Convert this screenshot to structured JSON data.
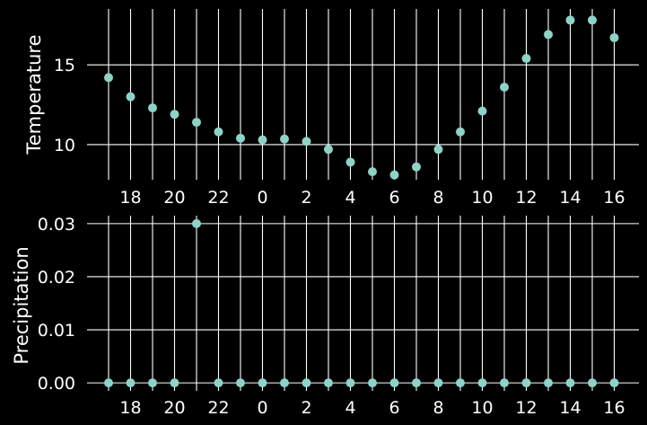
{
  "colors": {
    "background": "#000000",
    "grid": "#ffffff",
    "marker": "#8dd3c7",
    "text": "#ffffff"
  },
  "chart_data": [
    {
      "type": "scatter",
      "ylabel": "Temperature",
      "xlabel": "",
      "grid": true,
      "x_hours": [
        17,
        18,
        19,
        20,
        21,
        22,
        23,
        0,
        1,
        2,
        3,
        4,
        5,
        6,
        7,
        8,
        9,
        10,
        11,
        12,
        13,
        14,
        15,
        16
      ],
      "x_tick_labels": [
        "18",
        "20",
        "22",
        "0",
        "2",
        "4",
        "6",
        "8",
        "10",
        "12",
        "14",
        "16"
      ],
      "y_ticks": [
        10,
        15
      ],
      "ylim": [
        7.8,
        18.5
      ],
      "values": [
        14.2,
        13.0,
        12.3,
        11.9,
        11.4,
        10.8,
        10.4,
        10.3,
        10.35,
        10.2,
        9.7,
        8.9,
        8.3,
        8.1,
        8.6,
        9.7,
        10.8,
        12.1,
        13.6,
        15.4,
        16.9,
        17.8,
        17.8,
        16.7
      ]
    },
    {
      "type": "scatter",
      "ylabel": "Precipitation",
      "xlabel": "",
      "grid": true,
      "x_hours": [
        17,
        18,
        19,
        20,
        21,
        22,
        23,
        0,
        1,
        2,
        3,
        4,
        5,
        6,
        7,
        8,
        9,
        10,
        11,
        12,
        13,
        14,
        15,
        16
      ],
      "x_tick_labels": [
        "18",
        "20",
        "22",
        "0",
        "2",
        "4",
        "6",
        "8",
        "10",
        "12",
        "14",
        "16"
      ],
      "y_ticks": [
        "0.00",
        "0.01",
        "0.02",
        "0.03"
      ],
      "ylim": [
        -0.0015,
        0.0315
      ],
      "values": [
        0,
        0,
        0,
        0,
        0.03,
        0,
        0,
        0,
        0,
        0,
        0,
        0,
        0,
        0,
        0,
        0,
        0,
        0,
        0,
        0,
        0,
        0,
        0,
        0
      ]
    }
  ]
}
